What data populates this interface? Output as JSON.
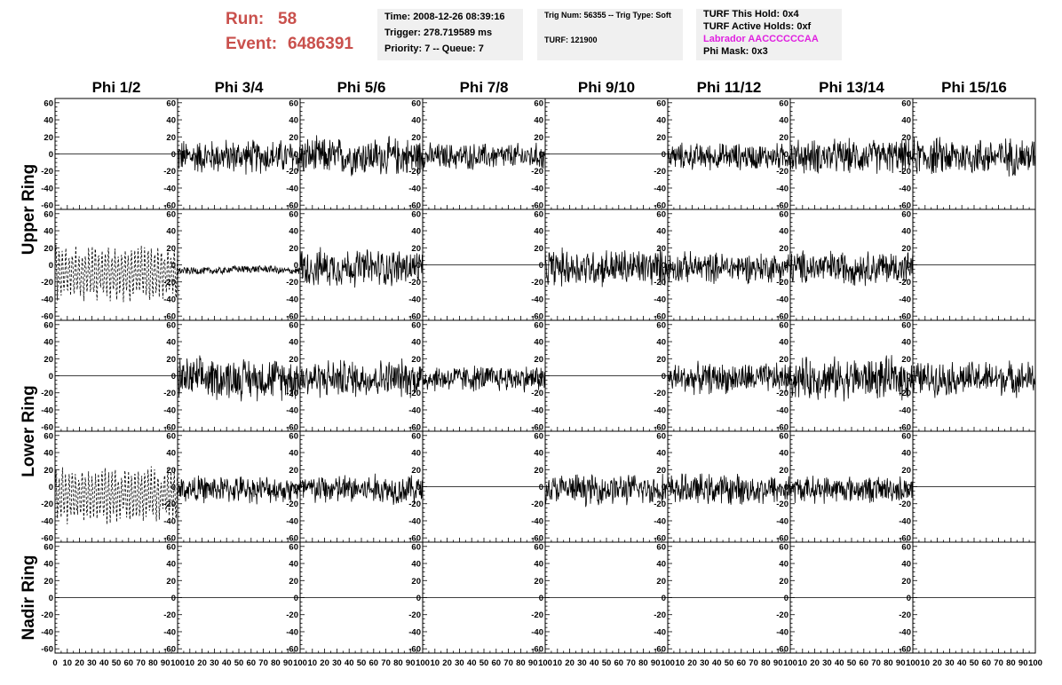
{
  "header": {
    "run_label": "Run:",
    "run_value": "58",
    "event_label": "Event:",
    "event_value": "6486391",
    "panel1": [
      "Time: 2008-12-26 08:39:16",
      "Trigger: 278.719589 ms",
      "Priority: 7 -- Queue: 7"
    ],
    "panel2": [
      "Trig Num: 56355 -- Trig Type: Soft",
      "TURF: 121900"
    ],
    "panel3": [
      "TURF This Hold: 0x4",
      "TURF Active Holds: 0xf",
      "Labrador AACCCCCCAA",
      "Phi Mask: 0x3"
    ],
    "labrador_color": "#e020e0"
  },
  "chart_data": {
    "type": "line",
    "columns": [
      "Phi 1/2",
      "Phi 3/4",
      "Phi 5/6",
      "Phi 7/8",
      "Phi 9/10",
      "Phi 11/12",
      "Phi 13/14",
      "Phi 15/16"
    ],
    "rows": [
      "Upper Ring",
      "Lower Ring",
      "Nadir Ring"
    ],
    "xlim": [
      0,
      100
    ],
    "ylim": [
      -65,
      65
    ],
    "y_ticks": [
      -60,
      -40,
      -20,
      0,
      20,
      40,
      60
    ],
    "x_ticks": [
      0,
      10,
      20,
      30,
      40,
      50,
      60,
      70,
      80,
      90,
      100
    ],
    "panels": [
      {
        "kind": "flat",
        "amp": 0
      },
      {
        "kind": "noise",
        "amp": 18
      },
      {
        "kind": "noise",
        "amp": 20
      },
      {
        "kind": "noise",
        "amp": 14
      },
      {
        "kind": "flat",
        "amp": 0
      },
      {
        "kind": "noise",
        "amp": 14
      },
      {
        "kind": "noise",
        "amp": 18
      },
      {
        "kind": "noise",
        "amp": 20
      },
      {
        "kind": "dashed",
        "amp": 32
      },
      {
        "kind": "small",
        "amp": 4
      },
      {
        "kind": "noise",
        "amp": 20
      },
      {
        "kind": "flat",
        "amp": 0
      },
      {
        "kind": "noise",
        "amp": 20
      },
      {
        "kind": "noise",
        "amp": 16
      },
      {
        "kind": "noise",
        "amp": 18
      },
      {
        "kind": "flat",
        "amp": 0
      },
      {
        "kind": "flat",
        "amp": 0
      },
      {
        "kind": "noise",
        "amp": 22
      },
      {
        "kind": "noise",
        "amp": 20
      },
      {
        "kind": "noise",
        "amp": 14
      },
      {
        "kind": "flat",
        "amp": 0
      },
      {
        "kind": "noise",
        "amp": 16
      },
      {
        "kind": "noise",
        "amp": 22
      },
      {
        "kind": "noise",
        "amp": 18
      },
      {
        "kind": "dashed",
        "amp": 32
      },
      {
        "kind": "noise",
        "amp": 14
      },
      {
        "kind": "noise",
        "amp": 16
      },
      {
        "kind": "flat",
        "amp": 0
      },
      {
        "kind": "noise",
        "amp": 16
      },
      {
        "kind": "noise",
        "amp": 16
      },
      {
        "kind": "noise",
        "amp": 14
      },
      {
        "kind": "flat",
        "amp": 0
      },
      {
        "kind": "flat",
        "amp": 0
      },
      {
        "kind": "flat",
        "amp": 0
      },
      {
        "kind": "flat",
        "amp": 0
      },
      {
        "kind": "flat",
        "amp": 0
      },
      {
        "kind": "flat",
        "amp": 0
      },
      {
        "kind": "flat",
        "amp": 0
      },
      {
        "kind": "flat",
        "amp": 0
      },
      {
        "kind": "flat",
        "amp": 0
      }
    ]
  }
}
